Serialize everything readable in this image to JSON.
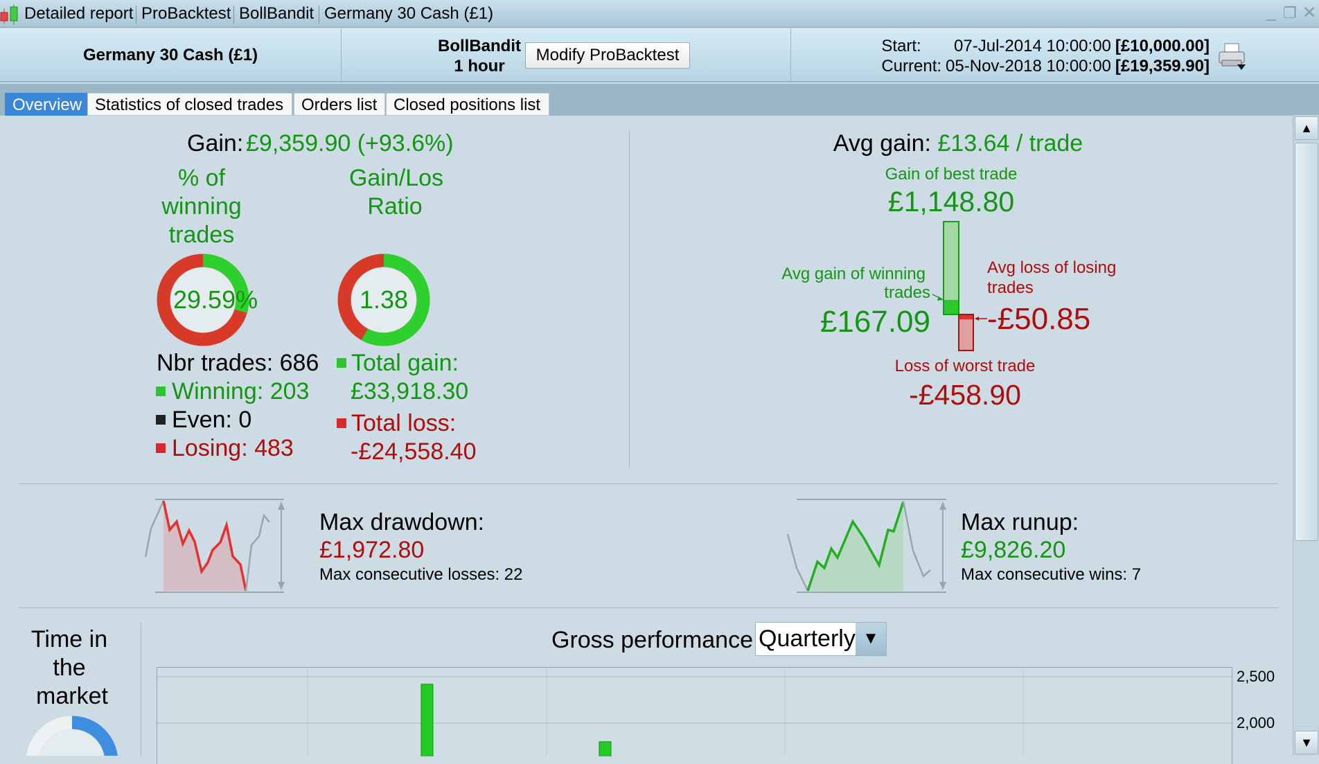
{
  "window": {
    "title_parts": [
      "Detailed report",
      "ProBacktest",
      "BollBandit",
      "Germany 30 Cash (£1)"
    ],
    "controls": [
      "minimize",
      "restore",
      "close"
    ]
  },
  "header": {
    "instrument": "Germany 30 Cash (£1)",
    "system": "BollBandit",
    "timeframe": "1 hour",
    "modify_button": "Modify ProBacktest",
    "start_label": "Start:",
    "start_date": "07-Jul-2014 10:00:00",
    "start_capital": "[£10,000.00]",
    "current_label": "Current:",
    "current_date": "05-Nov-2018 10:00:00",
    "current_capital": "[£19,359.90]"
  },
  "tabs": [
    {
      "label": "Overview",
      "active": true
    },
    {
      "label": "Statistics of closed trades"
    },
    {
      "label": "Orders list"
    },
    {
      "label": "Closed positions list"
    }
  ],
  "overview": {
    "gain_label": "Gain:",
    "gain_value": "£9,359.90 (+93.6%)",
    "pct_winning_label": [
      "% of",
      "winning",
      "trades"
    ],
    "pct_winning_value": "29.59%",
    "pct_winning_fraction": 0.2959,
    "ratio_label": [
      "Gain/Los",
      "Ratio"
    ],
    "ratio_value": "1.38",
    "ratio_green_fraction": 0.58,
    "nbr_trades": "Nbr trades: 686",
    "winning": "Winning: 203",
    "even": "Even: 0",
    "losing": "Losing: 483",
    "total_gain_label": "Total gain:",
    "total_gain_value": "£33,918.30",
    "total_loss_label": "Total loss:",
    "total_loss_value": "-£24,558.40",
    "avg_gain_label": "Avg gain:",
    "avg_gain_value": "£13.64 / trade",
    "best_trade_label": "Gain of best trade",
    "best_trade_value": "£1,148.80",
    "avg_win_label": [
      "Avg gain of winning",
      "trades"
    ],
    "avg_win_value": "£167.09",
    "avg_loss_label": [
      "Avg loss of losing",
      "trades"
    ],
    "avg_loss_value": "-£50.85",
    "worst_trade_label": "Loss of worst trade",
    "worst_trade_value": "-£458.90",
    "drawdown_label": "Max drawdown:",
    "drawdown_value": "£1,972.80",
    "consec_losses": "Max consecutive losses: 22",
    "runup_label": "Max runup:",
    "runup_value": "£9,826.20",
    "consec_wins": "Max consecutive wins: 7",
    "time_in_market_label": [
      "Time in",
      "the",
      "market"
    ],
    "gross_perf_label": "Gross performance",
    "gross_perf_period": "Quarterly"
  },
  "colors": {
    "gain": "#149614",
    "loss": "#b00c0c",
    "tab_active": "#3a86d8"
  },
  "chart_data": {
    "type": "bar",
    "title": "Gross performance",
    "categories": [
      "",
      ""
    ],
    "values": [
      2420,
      1800
    ],
    "yticks": [
      2500,
      2000
    ],
    "ytick_labels": [
      "2,500",
      "2,000"
    ],
    "ylim": [
      1800,
      2600
    ],
    "grid": true
  }
}
